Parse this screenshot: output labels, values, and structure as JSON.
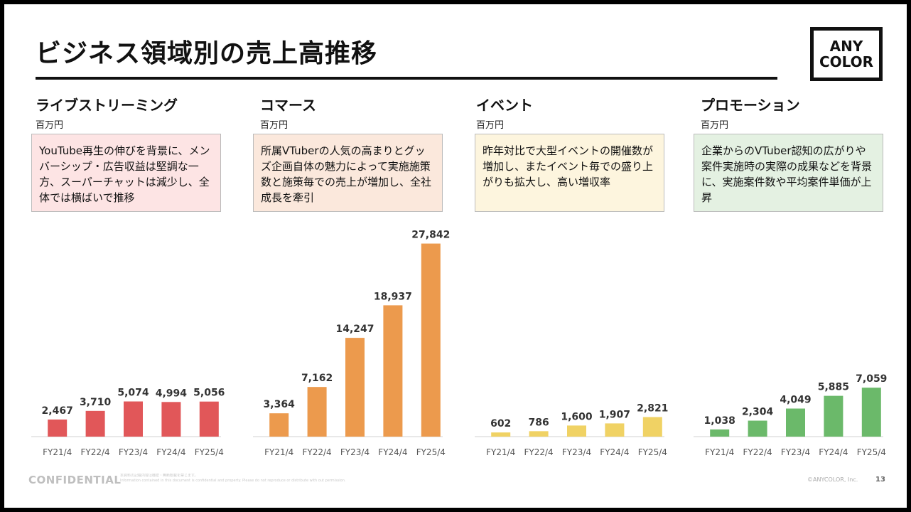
{
  "title": "ビジネス領域別の売上高推移",
  "logo": {
    "line1": "ANY",
    "line2": "COLOR"
  },
  "footer": {
    "confidential": "CONFIDENTIAL",
    "note_line1": "本資料の記載内容は機密・無断転載を禁じます。",
    "note_line2": "Information contained in this document is confidential and property. Please do not reproduce or distribute with out permission.",
    "copyright": "©ANYCOLOR, Inc.",
    "page": "13"
  },
  "sections": [
    {
      "title": "ライブストリーミング",
      "unit": "百万円",
      "description": "YouTube再生の伸びを背景に、メンバーシップ・広告収益は堅調な一方、スーパーチャットは減少し、全体では横ばいで推移",
      "box_bg": "#fde4e4",
      "bar_color": "#e15759"
    },
    {
      "title": "コマース",
      "unit": "百万円",
      "description": "所属VTuberの人気の高まりとグッズ企画自体の魅力によって実施施策数と施策毎での売上が増加し、全社成長を牽引",
      "box_bg": "#fbe8dc",
      "bar_color": "#ec9a4d"
    },
    {
      "title": "イベント",
      "unit": "百万円",
      "description": "昨年対比で大型イベントの開催数が増加し、またイベント毎での盛り上がりも拡大し、高い増収率",
      "box_bg": "#fdf5de",
      "bar_color": "#f0d264"
    },
    {
      "title": "プロモーション",
      "unit": "百万円",
      "description": "企業からのVTuber認知の広がりや案件実施時の実際の成果などを背景に、実施案件数や平均案件単価が上昇",
      "box_bg": "#e4f1e2",
      "bar_color": "#6bb96a"
    }
  ],
  "chart_data": [
    {
      "type": "bar",
      "title": "ライブストリーミング",
      "categories": [
        "FY21/4",
        "FY22/4",
        "FY23/4",
        "FY24/4",
        "FY25/4"
      ],
      "values": [
        2467,
        3710,
        5074,
        4994,
        5056
      ],
      "labels": [
        "2,467",
        "3,710",
        "5,074",
        "4,994",
        "5,056"
      ],
      "ylabel": "百万円",
      "ylim": [
        0,
        28000
      ],
      "grid": false
    },
    {
      "type": "bar",
      "title": "コマース",
      "categories": [
        "FY21/4",
        "FY22/4",
        "FY23/4",
        "FY24/4",
        "FY25/4"
      ],
      "values": [
        3364,
        7162,
        14247,
        18937,
        27842
      ],
      "labels": [
        "3,364",
        "7,162",
        "14,247",
        "18,937",
        "27,842"
      ],
      "ylabel": "百万円",
      "ylim": [
        0,
        28000
      ],
      "grid": false
    },
    {
      "type": "bar",
      "title": "イベント",
      "categories": [
        "FY21/4",
        "FY22/4",
        "FY23/4",
        "FY24/4",
        "FY25/4"
      ],
      "values": [
        602,
        786,
        1600,
        1907,
        2821
      ],
      "labels": [
        "602",
        "786",
        "1,600",
        "1,907",
        "2,821"
      ],
      "ylabel": "百万円",
      "ylim": [
        0,
        28000
      ],
      "grid": false
    },
    {
      "type": "bar",
      "title": "プロモーション",
      "categories": [
        "FY21/4",
        "FY22/4",
        "FY23/4",
        "FY24/4",
        "FY25/4"
      ],
      "values": [
        1038,
        2304,
        4049,
        5885,
        7059
      ],
      "labels": [
        "1,038",
        "2,304",
        "4,049",
        "5,885",
        "7,059"
      ],
      "ylabel": "百万円",
      "ylim": [
        0,
        28000
      ],
      "grid": false
    }
  ]
}
